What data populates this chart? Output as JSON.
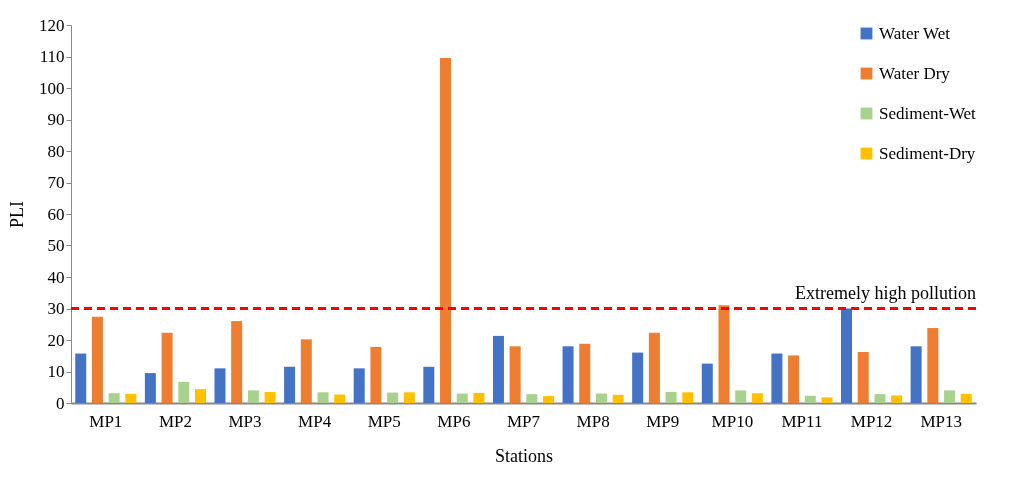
{
  "chart_data": {
    "type": "bar",
    "xlabel": "Stations",
    "ylabel": "PLI",
    "categories": [
      "MP1",
      "MP2",
      "MP3",
      "MP4",
      "MP5",
      "MP6",
      "MP7",
      "MP8",
      "MP9",
      "MP10",
      "MP11",
      "MP12",
      "MP13"
    ],
    "series": [
      {
        "name": "Water Wet",
        "color": "#4472c4",
        "values": [
          15.7,
          9.5,
          11,
          11.5,
          11,
          11.5,
          21.3,
          18,
          16,
          12.5,
          15.7,
          30,
          18
        ]
      },
      {
        "name": "Water Dry",
        "color": "#ed7d31",
        "values": [
          27.4,
          22.3,
          26,
          20.2,
          17.8,
          109.5,
          18,
          18.8,
          22.3,
          31,
          15.1,
          16.2,
          23.8
        ]
      },
      {
        "name": "Sediment-Wet",
        "color": "#a9d18e",
        "values": [
          3.1,
          6.7,
          4,
          3.4,
          3.3,
          3,
          2.8,
          3,
          3.5,
          4,
          2.3,
          2.8,
          4
        ]
      },
      {
        "name": "Sediment-Dry",
        "color": "#ffc000",
        "values": [
          2.9,
          4.4,
          3.5,
          2.7,
          3.4,
          3.2,
          2.2,
          2.6,
          3.4,
          3.1,
          1.8,
          2.4,
          2.9
        ]
      }
    ],
    "ylim": [
      0,
      120
    ],
    "yticks": [
      0,
      10,
      20,
      30,
      40,
      50,
      60,
      70,
      80,
      90,
      100,
      110,
      120
    ],
    "grid": false,
    "legend": "top right",
    "ref_lines": [
      {
        "axis": "y",
        "value": 30,
        "label": "Extremely high pollution",
        "color": "#ff0000",
        "line_style": "dashed"
      }
    ]
  }
}
